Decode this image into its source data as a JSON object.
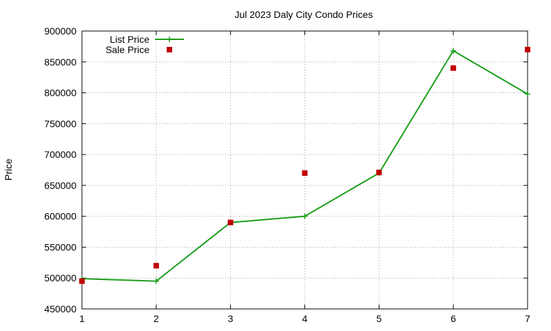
{
  "chart_data": {
    "type": "line",
    "title": "Jul 2023 Daly City Condo Prices",
    "xlabel": "",
    "ylabel": "Price",
    "xlim": [
      1,
      7
    ],
    "ylim": [
      450000,
      900000
    ],
    "x_ticks": [
      "1",
      "2",
      "3",
      "4",
      "5",
      "6",
      "7"
    ],
    "y_ticks": [
      "450000",
      "500000",
      "550000",
      "600000",
      "650000",
      "700000",
      "750000",
      "800000",
      "850000",
      "900000"
    ],
    "grid": true,
    "legend_position": "top-left",
    "series": [
      {
        "name": "List Price",
        "style": "line+points",
        "color": "#1a9e1a",
        "marker": "plus",
        "x": [
          1,
          2,
          3,
          4,
          5,
          6,
          7
        ],
        "values": [
          499000,
          495000,
          590000,
          600000,
          670000,
          868000,
          798000
        ]
      },
      {
        "name": "Sale Price",
        "style": "points",
        "color": "#c00000",
        "marker": "square",
        "x": [
          1,
          2,
          3,
          4,
          5,
          6,
          7
        ],
        "values": [
          495000,
          520000,
          590000,
          670000,
          671000,
          840000,
          870000
        ]
      }
    ]
  }
}
